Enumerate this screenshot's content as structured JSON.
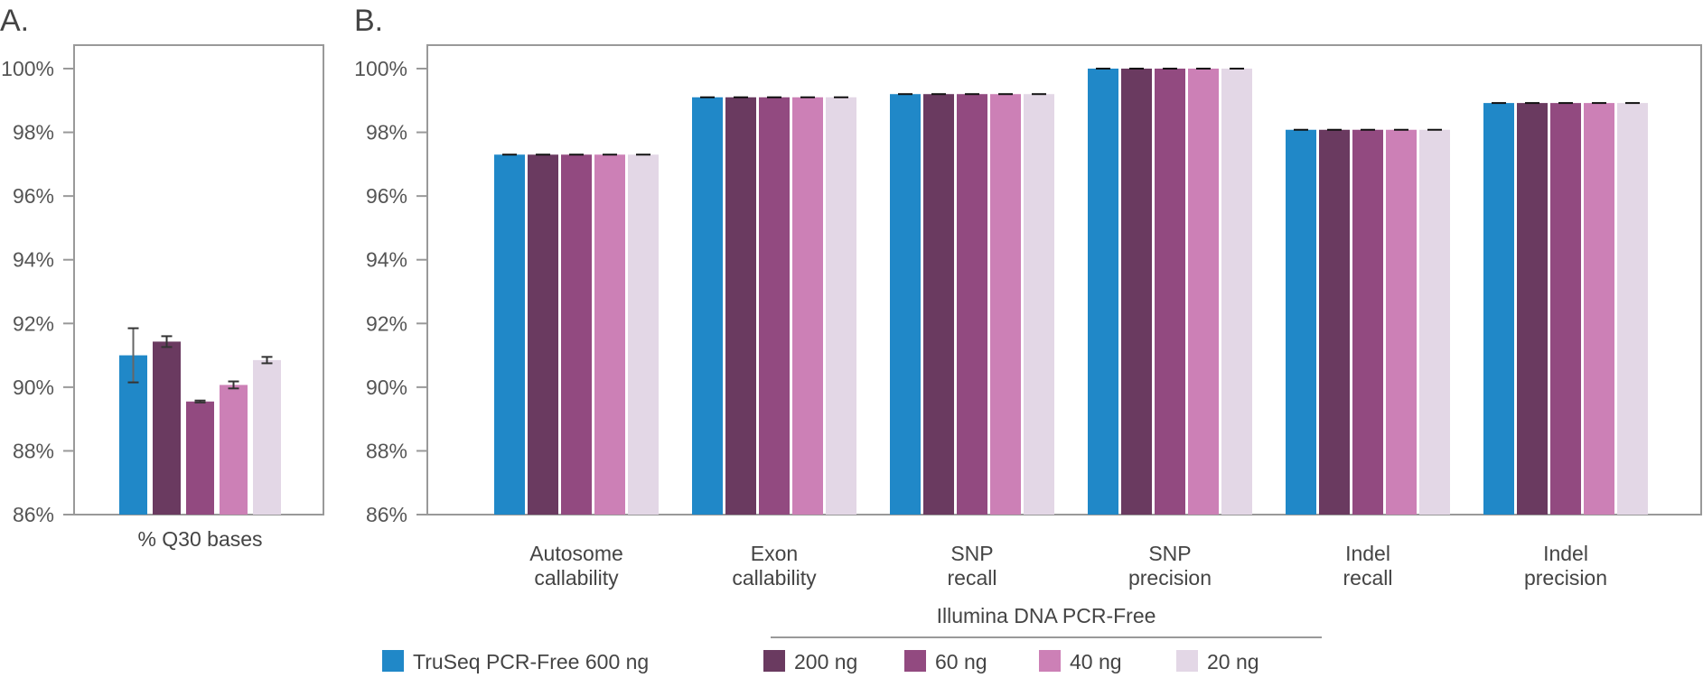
{
  "chart_data": [
    {
      "panel_label": "A.",
      "type": "bar",
      "categories": [
        "% Q30 bases"
      ],
      "ylim": [
        86,
        100
      ],
      "yticks": [
        "86%",
        "88%",
        "90%",
        "92%",
        "94%",
        "96%",
        "98%",
        "100%"
      ],
      "series": [
        {
          "name": "TruSeq PCR-Free 600 ng",
          "values": [
            91.0
          ],
          "error": [
            0.85
          ]
        },
        {
          "name": "200 ng",
          "values": [
            91.43
          ],
          "error": [
            0.17
          ]
        },
        {
          "name": "60 ng",
          "values": [
            89.55
          ],
          "error": [
            0.03
          ]
        },
        {
          "name": "40 ng",
          "values": [
            90.07
          ],
          "error": [
            0.11
          ]
        },
        {
          "name": "20 ng",
          "values": [
            90.85
          ],
          "error": [
            0.1
          ]
        }
      ]
    },
    {
      "panel_label": "B.",
      "type": "bar",
      "categories": [
        [
          "Autosome",
          "callability"
        ],
        [
          "Exon",
          "callability"
        ],
        [
          "SNP",
          "recall"
        ],
        [
          "SNP",
          "precision"
        ],
        [
          "Indel",
          "recall"
        ],
        [
          "Indel",
          "precision"
        ]
      ],
      "ylim": [
        86,
        100
      ],
      "yticks": [
        "86%",
        "88%",
        "90%",
        "92%",
        "94%",
        "96%",
        "98%",
        "100%"
      ],
      "series": [
        {
          "name": "TruSeq PCR-Free 600 ng",
          "values": [
            97.3,
            99.1,
            99.2,
            100.0,
            98.08,
            98.92
          ]
        },
        {
          "name": "200 ng",
          "values": [
            97.3,
            99.1,
            99.2,
            100.0,
            98.08,
            98.92
          ]
        },
        {
          "name": "60 ng",
          "values": [
            97.3,
            99.1,
            99.2,
            100.0,
            98.08,
            98.92
          ]
        },
        {
          "name": "40 ng",
          "values": [
            97.3,
            99.1,
            99.2,
            100.0,
            98.08,
            98.92
          ]
        },
        {
          "name": "20 ng",
          "values": [
            97.3,
            99.1,
            99.2,
            100.0,
            98.08,
            98.92
          ]
        }
      ]
    }
  ],
  "legend": {
    "group_title": "Illumina DNA PCR-Free",
    "items": [
      {
        "label": "TruSeq PCR-Free 600 ng",
        "color": "#2088c8"
      },
      {
        "label": "200 ng",
        "color": "#6a3a60"
      },
      {
        "label": "60 ng",
        "color": "#924a80"
      },
      {
        "label": "40 ng",
        "color": "#cc80b6"
      },
      {
        "label": "20 ng",
        "color": "#e3d7e6"
      }
    ]
  }
}
